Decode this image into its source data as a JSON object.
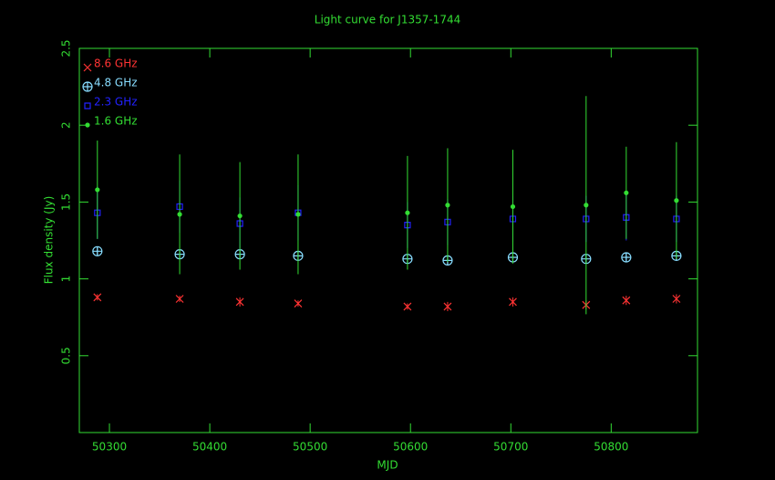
{
  "chart_data": {
    "type": "errorbar",
    "title": "Light curve for J1357-1744",
    "xlabel": "MJD",
    "ylabel": "Flux density (Jy)",
    "axis_color": "#33dd33",
    "legend": "upper left",
    "xlim": [
      50270,
      50886
    ],
    "ylim": [
      0,
      2.5
    ],
    "xticks": [
      50300,
      50400,
      50500,
      50600,
      50700,
      50800
    ],
    "yticks": [
      0.5,
      1,
      1.5,
      2,
      2.5
    ],
    "x": [
      50288,
      50370,
      50430,
      50488,
      50597,
      50637,
      50702,
      50775,
      50815,
      50865
    ],
    "series": [
      {
        "name": "8.6 GHz",
        "color": "#ff3333",
        "marker": "x",
        "values": [
          0.88,
          0.87,
          0.85,
          0.84,
          0.82,
          0.82,
          0.85,
          0.83,
          0.86,
          0.87
        ],
        "errors": [
          0.02,
          0.02,
          0.03,
          0.02,
          0.02,
          0.03,
          0.03,
          0.03,
          0.03,
          0.03
        ]
      },
      {
        "name": "4.8 GHz",
        "color": "#88ddff",
        "marker": "circle",
        "values": [
          1.18,
          1.16,
          1.16,
          1.15,
          1.13,
          1.12,
          1.14,
          1.13,
          1.14,
          1.15
        ],
        "errors": [
          0.03,
          0.03,
          0.03,
          0.03,
          0.03,
          0.03,
          0.03,
          0.03,
          0.03,
          0.03
        ]
      },
      {
        "name": "2.3 GHz",
        "color": "#2222ff",
        "marker": "square",
        "values": [
          1.43,
          1.47,
          1.36,
          1.43,
          1.35,
          1.37,
          1.39,
          1.39,
          1.4,
          1.39
        ],
        "errors": [
          0.17,
          0.17,
          0.17,
          0.18,
          0.15,
          0.15,
          0.15,
          0.15,
          0.15,
          0.15
        ]
      },
      {
        "name": "1.6 GHz",
        "color": "#33dd33",
        "marker": "dot",
        "values": [
          1.58,
          1.42,
          1.41,
          1.42,
          1.43,
          1.48,
          1.47,
          1.48,
          1.56,
          1.51
        ],
        "errors": [
          0.32,
          0.39,
          0.35,
          0.39,
          0.37,
          0.37,
          0.37,
          0.71,
          0.3,
          0.38
        ]
      }
    ]
  }
}
